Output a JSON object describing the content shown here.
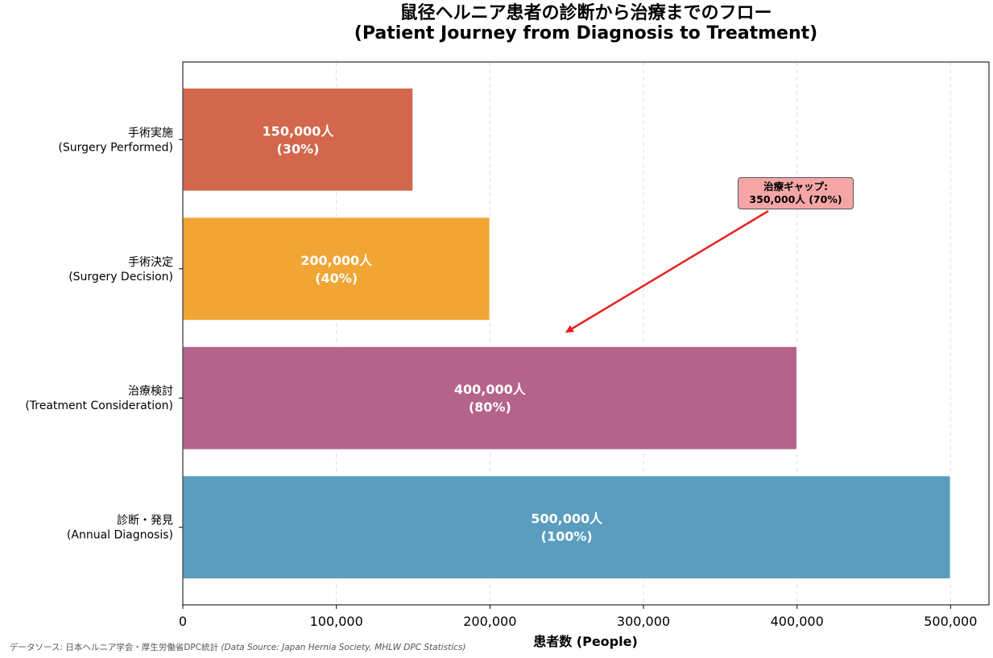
{
  "title_line1": "鼠径ヘルニア患者の診断から治療までのフロー",
  "title_line2": "(Patient Journey from Diagnosis to Treatment)",
  "chart_data": {
    "type": "bar",
    "orientation": "horizontal",
    "categories": [
      {
        "jp": "診断・発見",
        "en": "(Annual Diagnosis)"
      },
      {
        "jp": "治療検討",
        "en": "(Treatment Consideration)"
      },
      {
        "jp": "手術決定",
        "en": "(Surgery Decision)"
      },
      {
        "jp": "手術実施",
        "en": "(Surgery Performed)"
      }
    ],
    "values": [
      500000,
      400000,
      200000,
      150000
    ],
    "value_labels": [
      "500,000人",
      "400,000人",
      "200,000人",
      "150,000人"
    ],
    "pct_labels": [
      "(100%)",
      "(80%)",
      "(40%)",
      "(30%)"
    ],
    "colors": [
      "#5a9dbe",
      "#b4638b",
      "#f0a535",
      "#d3674c"
    ],
    "xlabel": "患者数 (People)",
    "ylabel": "",
    "xlim": [
      0,
      525000
    ],
    "xticks": [
      0,
      100000,
      200000,
      300000,
      400000,
      500000
    ],
    "xtick_labels": [
      "0",
      "100,000",
      "200,000",
      "300,000",
      "400,000",
      "500,000"
    ],
    "grid": "x-dashed",
    "annotation": {
      "line1": "治療ギャップ:",
      "line2": "350,000人 (70%)",
      "color": "#f4a6a6",
      "arrow_color": "#e8201c",
      "arrow_target_x": 250000
    }
  },
  "source_jp": "データソース: 日本ヘルニア学会・厚生労働省DPC統計",
  "source_en": "(Data Source: Japan Hernia Society, MHLW DPC Statistics)"
}
